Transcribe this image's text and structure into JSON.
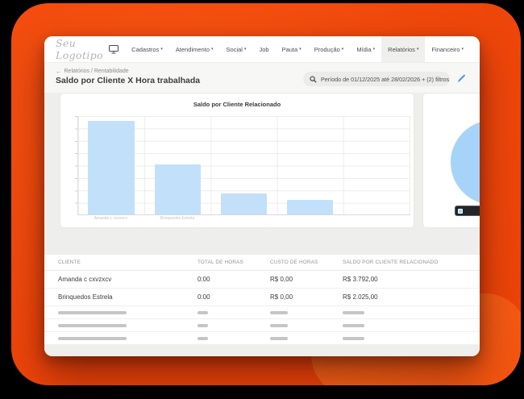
{
  "colors": {
    "background_outer": "#000000",
    "background_orange": "#ee450a",
    "accent_orange": "#fa6d1c",
    "bar_fill": "#c2e0fa",
    "pie_fill": "#a6d4f8",
    "edit_icon_blue": "#4a90e2",
    "active_menu_bg": "#efefee"
  },
  "icons": {
    "caret_down": "▾",
    "back_arrow": "←"
  },
  "nav": {
    "logo": "Seu Logotipo",
    "items": [
      {
        "label": "Cadastros",
        "caret": true
      },
      {
        "label": "Atendimento",
        "caret": true
      },
      {
        "label": "Social",
        "caret": true
      },
      {
        "label": "Job",
        "caret": false
      },
      {
        "label": "Pauta",
        "caret": true
      },
      {
        "label": "Produção",
        "caret": true
      },
      {
        "label": "Mídia",
        "caret": true
      },
      {
        "label": "Relatórios",
        "caret": true,
        "active": true
      },
      {
        "label": "Financeiro",
        "caret": true
      }
    ]
  },
  "header": {
    "breadcrumb": "Relatórios / Rentabilidade",
    "title": "Saldo por Cliente X Hora trabalhada",
    "filter_text": "Período de 01/12/2025 até 28/02/2026 + (2) filtros"
  },
  "chart_data": [
    {
      "type": "bar",
      "title": "Saldo por Cliente Relacionado",
      "categories": [
        "Amanda c cxvzxcv",
        "Brinquedos Estrela",
        "",
        "",
        ""
      ],
      "values": [
        3792,
        2025,
        850,
        600,
        0
      ],
      "ylim": [
        0,
        4000
      ],
      "xlabel": "",
      "ylabel": "",
      "grid": true,
      "legend": "none",
      "bar_color": "#c2e0fa",
      "note": "x-axis labels rendered nearly illegible; y-axis shows unlabeled ticks"
    },
    {
      "type": "pie",
      "title": "",
      "slices": [
        {
          "label": "",
          "color": "#a6d4f8"
        }
      ],
      "legend": "none",
      "note": "pie chart partially cut off by window edge; dark hover tooltip visible",
      "tooltip": {
        "swatch_color": "#a6d4f8",
        "text": ""
      }
    }
  ],
  "table": {
    "columns": [
      "CLIENTE",
      "TOTAL DE HORAS",
      "CUSTO DE HORAS",
      "SALDO POR CLIENTE RELACIONADO"
    ],
    "rows": [
      {
        "cliente": "Amanda c cxvzxcv",
        "total": "0:00",
        "custo": "R$ 0,00",
        "saldo": "R$ 3.792,00"
      },
      {
        "cliente": "Brinquedos Estrela",
        "total": "0:00",
        "custo": "R$ 0,00",
        "saldo": "R$ 2.025,00"
      }
    ],
    "skeleton_rows": 3
  }
}
